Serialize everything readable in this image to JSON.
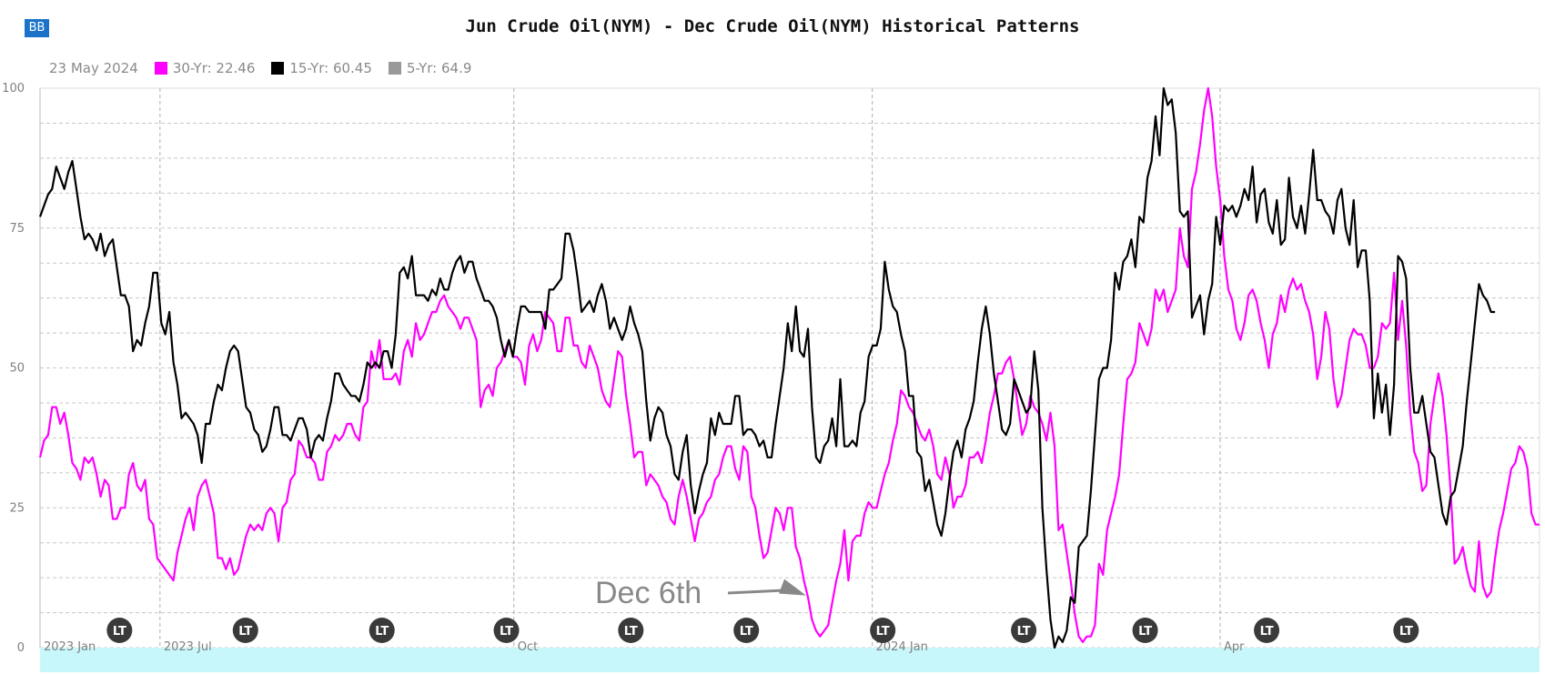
{
  "badge": {
    "label": "BB"
  },
  "chart_data": {
    "type": "line",
    "title": "Jun Crude Oil(NYM) - Dec Crude Oil(NYM) Historical Patterns",
    "date_label": "23 May 2024",
    "ylim": [
      0,
      100
    ],
    "y_ticks": [
      "0",
      "25",
      "50",
      "75",
      "100"
    ],
    "x_ticks": [
      "2023 Jan",
      "2023 Jul",
      "Oct",
      "2024 Jan",
      "Apr"
    ],
    "grid": true,
    "legend_position": "top-left",
    "series": [
      {
        "name": "30-Yr",
        "legend_text": "30-Yr: 22.46",
        "color": "#ff00ff",
        "values": [
          34,
          37,
          38,
          43,
          43,
          40,
          42,
          38,
          33,
          32,
          30,
          34,
          33,
          34,
          31,
          27,
          30,
          29,
          23,
          23,
          25,
          25,
          31,
          33,
          29,
          28,
          30,
          23,
          22,
          16,
          15,
          14,
          13,
          12,
          17,
          20,
          23,
          25,
          21,
          27,
          29,
          30,
          27,
          24,
          16,
          16,
          14,
          16,
          13,
          14,
          17,
          20,
          22,
          21,
          22,
          21,
          24,
          25,
          24,
          19,
          25,
          26,
          30,
          31,
          37,
          36,
          34,
          34,
          33,
          30,
          30,
          35,
          36,
          38,
          37,
          38,
          40,
          40,
          38,
          37,
          43,
          44,
          53,
          50,
          55,
          48,
          48,
          48,
          49,
          47,
          53,
          55,
          52,
          58,
          55,
          56,
          58,
          60,
          60,
          62,
          63,
          61,
          60,
          59,
          57,
          59,
          59,
          57,
          55,
          43,
          46,
          47,
          45,
          50,
          51,
          53,
          55,
          52,
          52,
          51,
          47,
          54,
          56,
          53,
          55,
          60,
          59,
          58,
          53,
          53,
          59,
          59,
          54,
          54,
          51,
          50,
          54,
          52,
          50,
          46,
          44,
          43,
          48,
          53,
          52,
          45,
          40,
          34,
          35,
          35,
          29,
          31,
          30,
          29,
          27,
          26,
          23,
          22,
          27,
          30,
          27,
          23,
          19,
          23,
          24,
          26,
          27,
          30,
          31,
          34,
          36,
          36,
          32,
          30,
          36,
          35,
          27,
          25,
          20,
          16,
          17,
          21,
          25,
          24,
          21,
          25,
          25,
          18,
          16,
          12,
          9,
          5,
          3,
          2,
          3,
          4,
          8,
          12,
          15,
          21,
          12,
          19,
          20,
          20,
          24,
          26,
          25,
          25,
          28,
          31,
          33,
          37,
          40,
          46,
          45,
          43,
          42,
          40,
          38,
          37,
          39,
          36,
          31,
          30,
          34,
          31,
          25,
          27,
          27,
          29,
          34,
          34,
          35,
          33,
          37,
          42,
          45,
          49,
          49,
          51,
          52,
          48,
          43,
          38,
          40,
          45,
          43,
          42,
          40,
          37,
          42,
          36,
          21,
          22,
          17,
          12,
          6,
          2,
          1,
          2,
          2,
          4,
          15,
          13,
          21,
          24,
          27,
          31,
          40,
          48,
          49,
          51,
          58,
          56,
          54,
          57,
          64,
          62,
          64,
          60,
          62,
          64,
          75,
          70,
          68,
          82,
          85,
          90,
          96,
          100,
          95,
          86,
          80,
          70,
          64,
          62,
          57,
          55,
          58,
          63,
          64,
          62,
          58,
          55,
          50,
          56,
          58,
          63,
          60,
          64,
          66,
          64,
          65,
          62,
          60,
          56,
          48,
          52,
          60,
          57,
          48,
          43,
          45,
          50,
          55,
          57,
          56,
          56,
          54,
          50,
          50,
          52,
          58,
          57,
          58,
          67,
          55,
          62,
          54,
          42,
          35,
          33,
          28,
          29,
          40,
          45,
          49,
          45,
          38,
          28,
          15,
          16,
          18,
          14,
          11,
          10,
          19,
          11,
          9,
          10,
          16,
          21,
          24,
          28,
          32,
          33,
          36,
          35,
          32,
          24,
          22,
          22
        ]
      },
      {
        "name": "15-Yr",
        "legend_text": "15-Yr: 60.45",
        "color": "#000000",
        "values": [
          77,
          79,
          81,
          82,
          86,
          84,
          82,
          85,
          87,
          82,
          77,
          73,
          74,
          73,
          71,
          74,
          70,
          72,
          73,
          68,
          63,
          63,
          61,
          53,
          55,
          54,
          58,
          61,
          67,
          67,
          58,
          56,
          60,
          51,
          47,
          41,
          42,
          41,
          40,
          38,
          33,
          40,
          40,
          44,
          47,
          46,
          50,
          53,
          54,
          53,
          48,
          43,
          42,
          39,
          38,
          35,
          36,
          39,
          43,
          43,
          38,
          38,
          37,
          39,
          41,
          41,
          39,
          34,
          37,
          38,
          37,
          41,
          44,
          49,
          49,
          47,
          46,
          45,
          45,
          44,
          47,
          51,
          50,
          51,
          50,
          53,
          53,
          50,
          56,
          67,
          68,
          66,
          70,
          63,
          63,
          63,
          62,
          64,
          63,
          66,
          64,
          64,
          67,
          69,
          70,
          67,
          69,
          69,
          66,
          64,
          62,
          62,
          61,
          59,
          55,
          52,
          55,
          52,
          57,
          61,
          61,
          60,
          60,
          60,
          60,
          57,
          64,
          64,
          65,
          66,
          74,
          74,
          71,
          66,
          60,
          61,
          62,
          60,
          63,
          65,
          62,
          57,
          59,
          57,
          55,
          57,
          61,
          58,
          56,
          53,
          44,
          37,
          41,
          43,
          42,
          38,
          36,
          31,
          30,
          35,
          38,
          29,
          24,
          28,
          31,
          33,
          41,
          38,
          42,
          40,
          40,
          40,
          45,
          45,
          38,
          39,
          39,
          38,
          36,
          37,
          34,
          34,
          40,
          45,
          50,
          58,
          53,
          61,
          53,
          52,
          57,
          43,
          34,
          33,
          36,
          37,
          41,
          36,
          48,
          36,
          36,
          37,
          36,
          42,
          44,
          52,
          54,
          54,
          57,
          69,
          64,
          61,
          60,
          56,
          53,
          45,
          45,
          35,
          34,
          28,
          30,
          26,
          22,
          20,
          24,
          30,
          35,
          37,
          34,
          39,
          41,
          44,
          51,
          57,
          61,
          56,
          49,
          44,
          39,
          38,
          40,
          48,
          46,
          44,
          42,
          43,
          53,
          46,
          25,
          14,
          5,
          0,
          2,
          1,
          3,
          9,
          8,
          18,
          19,
          20,
          28,
          38,
          48,
          50,
          50,
          55,
          67,
          64,
          69,
          70,
          73,
          68,
          77,
          76,
          84,
          87,
          95,
          88,
          100,
          97,
          98,
          92,
          78,
          77,
          78,
          59,
          61,
          63,
          56,
          62,
          65,
          77,
          72,
          79,
          78,
          79,
          77,
          79,
          82,
          80,
          86,
          76,
          81,
          82,
          76,
          74,
          80,
          72,
          73,
          84,
          77,
          75,
          79,
          74,
          81,
          89,
          80,
          80,
          78,
          77,
          74,
          80,
          82,
          75,
          72,
          80,
          68,
          71,
          71,
          62,
          41,
          49,
          42,
          47,
          38,
          47,
          70,
          69,
          66,
          50,
          42,
          42,
          45,
          40,
          35,
          34,
          29,
          24,
          22,
          27,
          28,
          32,
          36,
          44,
          51,
          58,
          65,
          63,
          62,
          60,
          60
        ]
      },
      {
        "name": "5-Yr",
        "legend_text": "5-Yr: 64.9",
        "color": "#999999",
        "values": []
      }
    ],
    "markers": {
      "label": "LT",
      "x_positions": [
        0.053,
        0.137,
        0.228,
        0.311,
        0.394,
        0.471,
        0.562,
        0.656,
        0.737,
        0.818,
        0.911
      ]
    },
    "annotation": {
      "text": "Dec 6th",
      "target_index": 190
    }
  }
}
